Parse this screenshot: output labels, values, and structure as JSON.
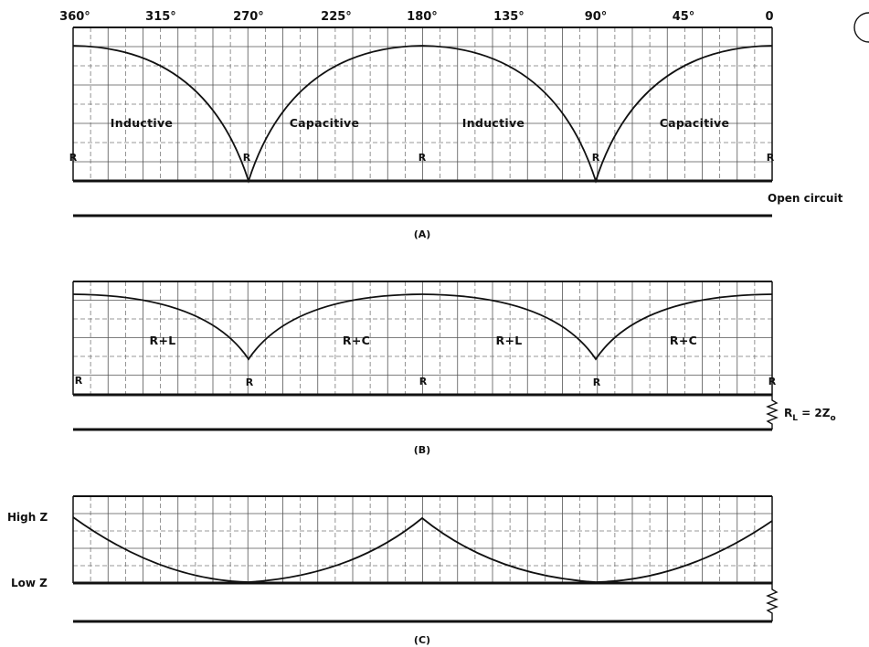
{
  "degree_labels": [
    "360°",
    "315°",
    "270°",
    "225°",
    "180°",
    "135°",
    "90°",
    "45°",
    "0"
  ],
  "panel_a": {
    "caption": "(A)",
    "regions": [
      "Inductive",
      "Capacitive",
      "Inductive",
      "Capacitive"
    ],
    "r_marks": [
      "R",
      "R",
      "R",
      "R",
      "R"
    ],
    "termination": "Open circuit"
  },
  "panel_b": {
    "caption": "(B)",
    "regions": [
      "R+L",
      "R+C",
      "R+L",
      "R+C"
    ],
    "r_marks": [
      "R",
      "R",
      "R",
      "R",
      "R"
    ],
    "load_label": "R",
    "load_sub": "L",
    "load_eq": " = 2Z",
    "load_eq_sub": "o"
  },
  "panel_c": {
    "caption": "(C)",
    "high_label": "High Z",
    "low_label": "Low Z"
  },
  "colors": {
    "ink": "#111111",
    "grid": "#555555",
    "paper": "#ffffff"
  }
}
